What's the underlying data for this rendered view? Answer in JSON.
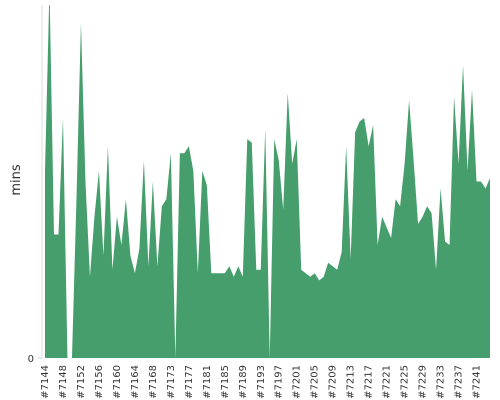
{
  "chart_data": {
    "type": "area",
    "y_label": "mins",
    "color": "#459e6c",
    "categories": [
      "#7144",
      null,
      null,
      null,
      "#7148",
      null,
      null,
      null,
      "#7152",
      null,
      null,
      null,
      "#7156",
      null,
      null,
      null,
      "#7160",
      null,
      null,
      null,
      "#7164",
      null,
      null,
      null,
      "#7168",
      null,
      null,
      null,
      "#7173",
      null,
      null,
      null,
      "#7177",
      null,
      null,
      null,
      "#7181",
      null,
      null,
      null,
      "#7185",
      null,
      null,
      null,
      "#7189",
      null,
      null,
      null,
      "#7193",
      null,
      null,
      null,
      "#7197",
      null,
      null,
      null,
      "#7201",
      null,
      null,
      null,
      "#7205",
      null,
      null,
      null,
      "#7209",
      null,
      null,
      null,
      "#7213",
      null,
      null,
      null,
      "#7217",
      null,
      null,
      null,
      "#7221",
      null,
      null,
      null,
      "#7225",
      null,
      null,
      null,
      "#7229",
      null,
      null,
      null,
      "#7233",
      null,
      null,
      null,
      "#7237",
      null,
      null,
      null,
      "#7241",
      null,
      null,
      null
    ],
    "values": [
      53,
      105,
      35,
      35,
      68,
      0,
      0,
      45,
      95,
      50,
      23,
      40,
      53,
      29,
      60,
      25,
      40,
      32,
      45,
      29,
      24,
      31,
      56,
      26,
      50,
      26,
      43,
      45,
      58,
      0,
      58,
      58,
      60,
      53,
      24,
      53,
      49,
      24,
      24,
      24,
      24,
      26,
      23,
      26,
      23,
      62,
      61,
      25,
      25,
      65,
      0,
      62,
      56,
      42,
      75,
      55,
      62,
      25,
      24,
      23,
      24,
      22,
      23,
      27,
      26,
      25,
      30,
      60,
      28,
      64,
      67,
      68,
      60,
      66,
      32,
      40,
      37,
      34,
      45,
      43,
      55,
      73,
      56,
      38,
      40,
      43,
      41,
      25,
      48,
      33,
      32,
      74,
      55,
      83,
      53,
      76,
      50,
      50,
      48,
      51
    ],
    "ylim": [
      0,
      100
    ],
    "yticks": [
      0
    ]
  }
}
